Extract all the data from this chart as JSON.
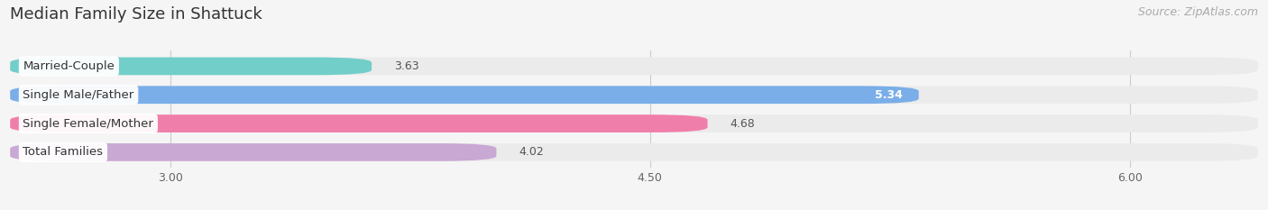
{
  "title": "Median Family Size in Shattuck",
  "source": "Source: ZipAtlas.com",
  "categories": [
    "Married-Couple",
    "Single Male/Father",
    "Single Female/Mother",
    "Total Families"
  ],
  "values": [
    3.63,
    5.34,
    4.68,
    4.02
  ],
  "bar_colors": [
    "#72cec9",
    "#7aaee8",
    "#f07eaa",
    "#c9a8d4"
  ],
  "xlim_left": 2.5,
  "xlim_right": 6.4,
  "xticks": [
    3.0,
    4.5,
    6.0
  ],
  "xtick_labels": [
    "3.00",
    "4.50",
    "6.00"
  ],
  "bar_height": 0.62,
  "row_bg_color": "#ebebeb",
  "plot_bg_color": "#f5f5f5",
  "figure_bg_color": "#f5f5f5",
  "title_fontsize": 13,
  "source_fontsize": 9,
  "label_fontsize": 9.5,
  "value_fontsize": 9
}
